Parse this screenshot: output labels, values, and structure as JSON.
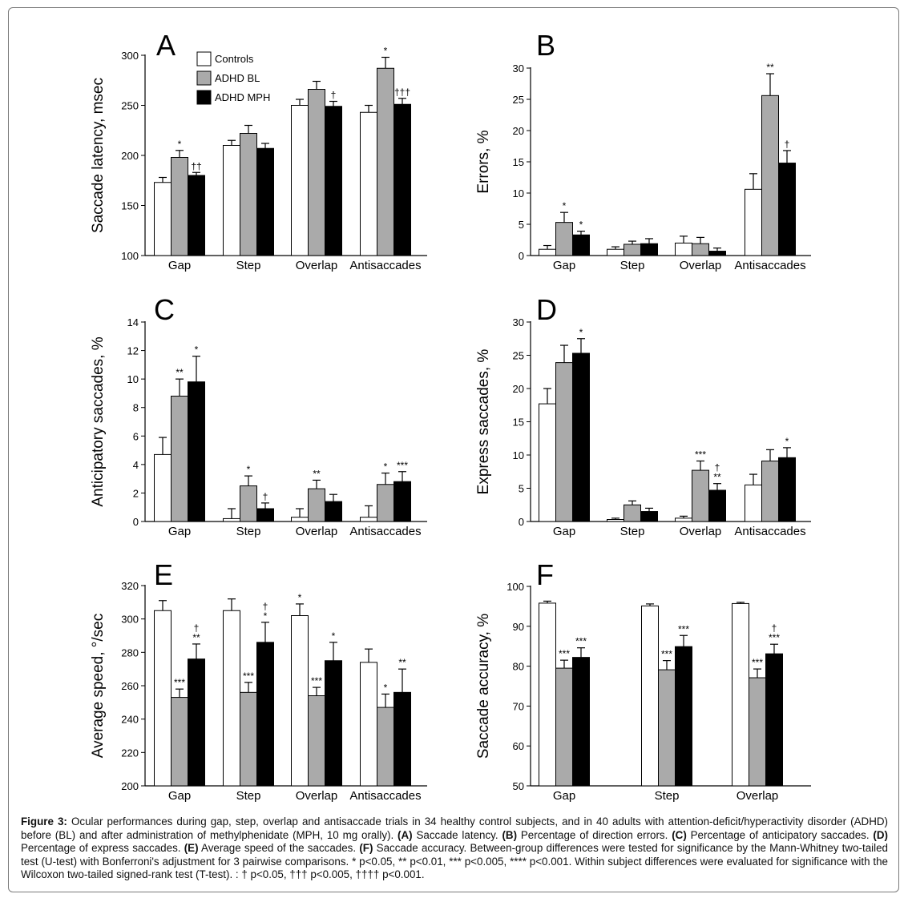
{
  "figure": {
    "caption": {
      "label": "Figure 3:",
      "intro": " Ocular performances during gap, step, overlap and antisaccade trials in 34 healthy control subjects, and in 40 adults with attention-deficit/hyperactivity disorder (ADHD) before (BL) and after administration of methylphenidate (MPH, 10 mg orally). ",
      "parts": [
        {
          "key": "(A)",
          "text": " Saccade latency. "
        },
        {
          "key": "(B)",
          "text": " Percentage of direction errors. "
        },
        {
          "key": "(C)",
          "text": " Percentage of anticipatory saccades. "
        },
        {
          "key": "(D)",
          "text": " Percentage of express saccades. "
        },
        {
          "key": "(E)",
          "text": " Average speed of the saccades. "
        },
        {
          "key": "(F)",
          "text": " Saccade accuracy.  Between-group differences were tested for significance by the Mann-Whitney two-tailed test (U-test) with Bonferroni's adjustment for 3 pairwise comparisons. * p<0.05, ** p<0.01, *** p<0.005, **** p<0.001.  Within subject differences were evaluated for significance with the Wilcoxon two-tailed signed-rank test (T-test). : † p<0.05, ††† p<0.005, †††† p<0.001."
        }
      ]
    },
    "legend": [
      "Controls",
      "ADHD BL",
      "ADHD MPH"
    ],
    "colors": {
      "Controls": "#ffffff",
      "ADHD BL": "#aaaaaa",
      "ADHD MPH": "#000000"
    }
  },
  "chart_data": [
    {
      "panel": "A",
      "type": "bar",
      "ylabel": "Saccade latency, msec",
      "ylim": [
        100,
        300
      ],
      "yticks": [
        100,
        150,
        200,
        250,
        300
      ],
      "categories": [
        "Gap",
        "Step",
        "Overlap",
        "Antisaccades"
      ],
      "series": [
        {
          "name": "Controls",
          "values": [
            173,
            210,
            250,
            243
          ],
          "errors": [
            5,
            5,
            6,
            7
          ]
        },
        {
          "name": "ADHD BL",
          "values": [
            198,
            222,
            266,
            287
          ],
          "errors": [
            7,
            8,
            8,
            11
          ]
        },
        {
          "name": "ADHD MPH",
          "values": [
            180,
            207,
            249,
            251
          ],
          "errors": [
            3,
            5,
            5,
            6
          ]
        }
      ],
      "annotations": [
        [
          "",
          "*",
          "††"
        ],
        [
          "",
          "",
          ""
        ],
        [
          "",
          "",
          "†"
        ],
        [
          "",
          "*",
          "†††"
        ]
      ]
    },
    {
      "panel": "B",
      "type": "bar",
      "ylabel": "Errors, %",
      "ylim": [
        0,
        30
      ],
      "yticks": [
        0,
        5,
        10,
        15,
        20,
        25,
        30
      ],
      "categories": [
        "Gap",
        "Step",
        "Overlap",
        "Antisaccades"
      ],
      "series": [
        {
          "name": "Controls",
          "values": [
            1.0,
            1.0,
            2.0,
            10.6
          ],
          "errors": [
            0.6,
            0.4,
            1.1,
            2.5
          ]
        },
        {
          "name": "ADHD BL",
          "values": [
            5.3,
            1.8,
            1.9,
            25.6
          ],
          "errors": [
            1.6,
            0.5,
            1.0,
            3.5
          ]
        },
        {
          "name": "ADHD MPH",
          "values": [
            3.3,
            1.9,
            0.7,
            14.8
          ],
          "errors": [
            0.6,
            0.8,
            0.5,
            2.0
          ]
        }
      ],
      "annotations": [
        [
          "",
          "*",
          "*"
        ],
        [
          "",
          "",
          ""
        ],
        [
          "",
          "",
          ""
        ],
        [
          "",
          "**",
          "†"
        ]
      ]
    },
    {
      "panel": "C",
      "type": "bar",
      "ylabel": "Anticipatory saccades, %",
      "ylim": [
        0,
        14
      ],
      "yticks": [
        0,
        2,
        4,
        6,
        8,
        10,
        12,
        14
      ],
      "categories": [
        "Gap",
        "Step",
        "Overlap",
        "Antisaccades"
      ],
      "series": [
        {
          "name": "Controls",
          "values": [
            4.7,
            0.2,
            0.3,
            0.3
          ],
          "errors": [
            1.2,
            0.7,
            0.6,
            0.8
          ]
        },
        {
          "name": "ADHD BL",
          "values": [
            8.8,
            2.5,
            2.3,
            2.6
          ],
          "errors": [
            1.2,
            0.7,
            0.6,
            0.8
          ]
        },
        {
          "name": "ADHD MPH",
          "values": [
            9.8,
            0.9,
            1.4,
            2.8
          ],
          "errors": [
            1.8,
            0.4,
            0.5,
            0.7
          ]
        }
      ],
      "annotations": [
        [
          "",
          "**",
          "*"
        ],
        [
          "",
          "*",
          "†"
        ],
        [
          "",
          "**",
          ""
        ],
        [
          "",
          "*",
          "***"
        ]
      ]
    },
    {
      "panel": "D",
      "type": "bar",
      "ylabel": "Express saccades, %",
      "ylim": [
        0,
        30
      ],
      "yticks": [
        0,
        5,
        10,
        15,
        20,
        25,
        30
      ],
      "categories": [
        "Gap",
        "Step",
        "Overlap",
        "Antisaccades"
      ],
      "series": [
        {
          "name": "Controls",
          "values": [
            17.7,
            0.3,
            0.5,
            5.5
          ],
          "errors": [
            2.3,
            0.2,
            0.3,
            1.6
          ]
        },
        {
          "name": "ADHD BL",
          "values": [
            23.9,
            2.5,
            7.7,
            9.1
          ],
          "errors": [
            2.6,
            0.6,
            1.4,
            1.7
          ]
        },
        {
          "name": "ADHD MPH",
          "values": [
            25.3,
            1.5,
            4.7,
            9.6
          ],
          "errors": [
            2.2,
            0.5,
            1.0,
            1.5
          ]
        }
      ],
      "annotations": [
        [
          "",
          "",
          "*"
        ],
        [
          "",
          "",
          ""
        ],
        [
          "",
          "***",
          "**"
        ],
        [
          "",
          "",
          "*"
        ]
      ],
      "extra_annotations": [
        {
          "category": 2,
          "series": 2,
          "text": "†",
          "level": 2
        }
      ]
    },
    {
      "panel": "E",
      "type": "bar",
      "ylabel": "Average speed, °/sec",
      "ylim": [
        200,
        320
      ],
      "yticks": [
        200,
        220,
        240,
        260,
        280,
        300,
        320
      ],
      "categories": [
        "Gap",
        "Step",
        "Overlap",
        "Antisaccades"
      ],
      "series": [
        {
          "name": "Controls",
          "values": [
            305,
            305,
            302,
            274
          ],
          "errors": [
            6,
            7,
            7,
            8
          ]
        },
        {
          "name": "ADHD BL",
          "values": [
            253,
            256,
            254,
            247
          ],
          "errors": [
            5,
            6,
            5,
            8
          ]
        },
        {
          "name": "ADHD MPH",
          "values": [
            276,
            286,
            275,
            256
          ],
          "errors": [
            9,
            12,
            11,
            14
          ]
        }
      ],
      "annotations": [
        [
          "",
          "***",
          "**"
        ],
        [
          "",
          "***",
          "*"
        ],
        [
          "*",
          "***",
          "*"
        ],
        [
          "",
          "*",
          "**"
        ]
      ],
      "extra_annotations": [
        {
          "category": 0,
          "series": 2,
          "text": "†",
          "level": 2
        },
        {
          "category": 1,
          "series": 2,
          "text": "†",
          "level": 2
        }
      ]
    },
    {
      "panel": "F",
      "type": "bar",
      "ylabel": "Saccade accuracy, %",
      "ylim": [
        50,
        100
      ],
      "yticks": [
        50,
        60,
        70,
        80,
        90,
        100
      ],
      "categories": [
        "Gap",
        "Step",
        "Overlap"
      ],
      "series": [
        {
          "name": "Controls",
          "values": [
            95.8,
            95.1,
            95.7
          ],
          "errors": [
            0.5,
            0.5,
            0.3
          ]
        },
        {
          "name": "ADHD BL",
          "values": [
            79.5,
            79.1,
            77.1
          ],
          "errors": [
            2.0,
            2.3,
            2.2
          ]
        },
        {
          "name": "ADHD MPH",
          "values": [
            82.2,
            84.9,
            83.1
          ],
          "errors": [
            2.4,
            2.8,
            2.4
          ]
        }
      ],
      "annotations": [
        [
          "",
          "***",
          "***"
        ],
        [
          "",
          "***",
          "***"
        ],
        [
          "",
          "***",
          "***"
        ]
      ],
      "extra_annotations": [
        {
          "category": 2,
          "series": 2,
          "text": "†",
          "level": 2
        }
      ]
    }
  ]
}
